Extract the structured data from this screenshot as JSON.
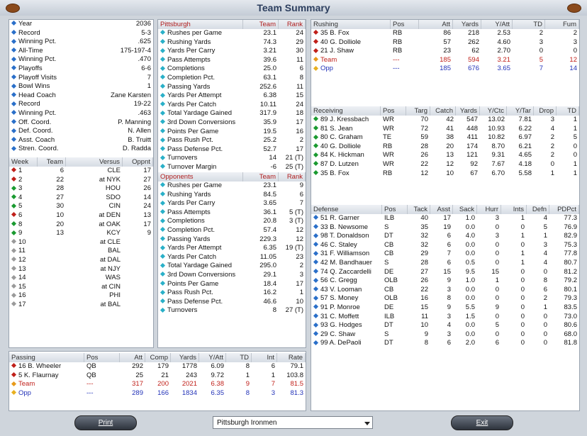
{
  "header": {
    "title": "Team Summary"
  },
  "team_info": {
    "rows": [
      [
        "Year",
        "2036"
      ],
      [
        "Record",
        "5-3"
      ],
      [
        "Winning Pct.",
        ".625"
      ],
      [
        "All-Time",
        "175-197-4"
      ],
      [
        "Winning Pct.",
        ".470"
      ],
      [
        "Playoffs",
        "6-6"
      ],
      [
        "Playoff Visits",
        "7"
      ],
      [
        "Bowl Wins",
        "1"
      ],
      [
        "Head Coach",
        "Zane Karsten"
      ],
      [
        "Record",
        "19-22"
      ],
      [
        "Winning Pct.",
        ".463"
      ],
      [
        "Off. Coord.",
        "P. Manning"
      ],
      [
        "Def. Coord.",
        "N. Allen"
      ],
      [
        "Asst. Coach",
        "B. Truitt"
      ],
      [
        "Stren. Coord.",
        "D. Radda"
      ]
    ]
  },
  "schedule": {
    "columns": [
      "Week",
      "Team",
      "Versus",
      "Oppnt"
    ],
    "rows": [
      [
        "1",
        "6",
        "CLE",
        "17"
      ],
      [
        "2",
        "22",
        "at NYK",
        "27"
      ],
      [
        "3",
        "28",
        "HOU",
        "26"
      ],
      [
        "4",
        "27",
        "SDO",
        "14"
      ],
      [
        "5",
        "30",
        "CIN",
        "24"
      ],
      [
        "6",
        "10",
        "at DEN",
        "13"
      ],
      [
        "8",
        "20",
        "at OAK",
        "17"
      ],
      [
        "9",
        "13",
        "KCY",
        "9"
      ],
      [
        "10",
        null,
        "at CLE",
        null
      ],
      [
        "11",
        null,
        "BAL",
        null
      ],
      [
        "12",
        null,
        "at DAL",
        null
      ],
      [
        "13",
        null,
        "at NJY",
        null
      ],
      [
        "14",
        null,
        "WAS",
        null
      ],
      [
        "15",
        null,
        "at CIN",
        null
      ],
      [
        "16",
        null,
        "PHI",
        null
      ],
      [
        "17",
        null,
        "at BAL",
        null
      ]
    ]
  },
  "team_stats": {
    "columns": [
      "Pittsburgh",
      "Team",
      "Rank"
    ],
    "rows": [
      [
        "Rushes per Game",
        "23.1",
        "24"
      ],
      [
        "Rushing Yards",
        "74.3",
        "29"
      ],
      [
        "Yards Per Carry",
        "3.21",
        "30"
      ],
      [
        "Pass Attempts",
        "39.6",
        "11"
      ],
      [
        "Completions",
        "25.0",
        "6"
      ],
      [
        "Completion Pct.",
        "63.1",
        "8"
      ],
      [
        "Passing Yards",
        "252.6",
        "11"
      ],
      [
        "Yards Per Attempt",
        "6.38",
        "15"
      ],
      [
        "Yards Per Catch",
        "10.11",
        "24"
      ],
      [
        "Total Yardage Gained",
        "317.9",
        "18"
      ],
      [
        "3rd Down Conversions",
        "35.9",
        "17"
      ],
      [
        "Points Per Game",
        "19.5",
        "16"
      ],
      [
        "Pass Rush Pct.",
        "25.2",
        "2"
      ],
      [
        "Pass Defense Pct.",
        "52.7",
        "17"
      ],
      [
        "Turnovers",
        "14",
        "21 (T)"
      ],
      [
        "Turnover Margin",
        "-6",
        "25 (T)"
      ]
    ]
  },
  "opponent_stats": {
    "columns": [
      "Opponents",
      "Team",
      "Rank"
    ],
    "rows": [
      [
        "Rushes per Game",
        "23.1",
        "9"
      ],
      [
        "Rushing Yards",
        "84.5",
        "6"
      ],
      [
        "Yards Per Carry",
        "3.65",
        "7"
      ],
      [
        "Pass Attempts",
        "36.1",
        "5 (T)"
      ],
      [
        "Completions",
        "20.8",
        "3 (T)"
      ],
      [
        "Completion Pct.",
        "57.4",
        "12"
      ],
      [
        "Passing Yards",
        "229.3",
        "12"
      ],
      [
        "Yards Per Attempt",
        "6.35",
        "19 (T)"
      ],
      [
        "Yards Per Catch",
        "11.05",
        "23"
      ],
      [
        "Total Yardage Gained",
        "295.0",
        "2"
      ],
      [
        "3rd Down Conversions",
        "29.1",
        "3"
      ],
      [
        "Points Per Game",
        "18.4",
        "17"
      ],
      [
        "Pass Rush Pct.",
        "16.2",
        "1"
      ],
      [
        "Pass Defense Pct.",
        "46.6",
        "10"
      ],
      [
        "Turnovers",
        "8",
        "27 (T)"
      ]
    ]
  },
  "rushing": {
    "columns": [
      "Rushing",
      "Pos",
      "Att",
      "Yards",
      "Y/Att",
      "TD",
      "Fum"
    ],
    "rows": [
      [
        "35 B. Fox",
        "RB",
        "86",
        "218",
        "2.53",
        "2",
        "2"
      ],
      [
        "40 G. Dolliole",
        "RB",
        "57",
        "262",
        "4.60",
        "3",
        "3"
      ],
      [
        "21 J. Shaw",
        "RB",
        "23",
        "62",
        "2.70",
        "0",
        "0"
      ]
    ],
    "team": [
      "Team",
      "---",
      "185",
      "594",
      "3.21",
      "5",
      "12"
    ],
    "opp": [
      "Opp",
      "---",
      "185",
      "676",
      "3.65",
      "7",
      "14"
    ]
  },
  "receiving": {
    "columns": [
      "Receiving",
      "Pos",
      "Targ",
      "Catch",
      "Yards",
      "Y/Ctc",
      "Y/Tar",
      "Drop",
      "TD"
    ],
    "rows": [
      [
        "89 J. Kressbach",
        "WR",
        "70",
        "42",
        "547",
        "13.02",
        "7.81",
        "3",
        "1"
      ],
      [
        "81 S. Jean",
        "WR",
        "72",
        "41",
        "448",
        "10.93",
        "6.22",
        "4",
        "1"
      ],
      [
        "80 C. Graham",
        "TE",
        "59",
        "38",
        "411",
        "10.82",
        "6.97",
        "2",
        "5"
      ],
      [
        "40 G. Dolliole",
        "RB",
        "28",
        "20",
        "174",
        "8.70",
        "6.21",
        "2",
        "0"
      ],
      [
        "84 K. Hickman",
        "WR",
        "26",
        "13",
        "121",
        "9.31",
        "4.65",
        "2",
        "0"
      ],
      [
        "87 D. Lutzen",
        "WR",
        "22",
        "12",
        "92",
        "7.67",
        "4.18",
        "0",
        "1"
      ],
      [
        "35 B. Fox",
        "RB",
        "12",
        "10",
        "67",
        "6.70",
        "5.58",
        "1",
        "1"
      ]
    ]
  },
  "defense": {
    "columns": [
      "Defense",
      "Pos",
      "Tack",
      "Asst",
      "Sack",
      "Hurr",
      "Ints",
      "Defn",
      "PDPct"
    ],
    "rows": [
      [
        "51 R. Garner",
        "ILB",
        "40",
        "17",
        "1.0",
        "3",
        "1",
        "4",
        "77.3"
      ],
      [
        "33 B. Newsome",
        "S",
        "35",
        "19",
        "0.0",
        "0",
        "0",
        "5",
        "76.9"
      ],
      [
        "98 T. Donaldson",
        "DT",
        "32",
        "6",
        "4.0",
        "3",
        "1",
        "1",
        "82.9"
      ],
      [
        "46 C. Staley",
        "CB",
        "32",
        "6",
        "0.0",
        "0",
        "0",
        "3",
        "75.3"
      ],
      [
        "31 F. Williamson",
        "CB",
        "29",
        "7",
        "0.0",
        "0",
        "1",
        "4",
        "77.8"
      ],
      [
        "42 M. Bandhauer",
        "S",
        "28",
        "6",
        "0.5",
        "0",
        "1",
        "4",
        "80.7"
      ],
      [
        "74 Q. Zaccardelli",
        "DE",
        "27",
        "15",
        "9.5",
        "15",
        "0",
        "0",
        "81.2"
      ],
      [
        "56 C. Gregg",
        "OLB",
        "26",
        "9",
        "1.0",
        "1",
        "0",
        "8",
        "79.2"
      ],
      [
        "43 V. Looman",
        "CB",
        "22",
        "3",
        "0.0",
        "0",
        "0",
        "6",
        "80.1"
      ],
      [
        "57 S. Money",
        "OLB",
        "16",
        "8",
        "0.0",
        "0",
        "0",
        "2",
        "79.3"
      ],
      [
        "91 P. Monroe",
        "DE",
        "15",
        "9",
        "5.5",
        "9",
        "0",
        "1",
        "83.5"
      ],
      [
        "31 C. Moffett",
        "ILB",
        "11",
        "3",
        "1.5",
        "0",
        "0",
        "0",
        "73.0"
      ],
      [
        "93 G. Hodges",
        "DT",
        "10",
        "4",
        "0.0",
        "5",
        "0",
        "0",
        "80.6"
      ],
      [
        "29 C. Shaw",
        "S",
        "9",
        "3",
        "0.0",
        "0",
        "0",
        "0",
        "68.0"
      ],
      [
        "99 A. DePaoli",
        "DT",
        "8",
        "6",
        "2.0",
        "6",
        "0",
        "0",
        "81.8"
      ]
    ]
  },
  "passing": {
    "columns": [
      "Passing",
      "Pos",
      "Att",
      "Comp",
      "Yards",
      "Y/Att",
      "TD",
      "Int",
      "Rate"
    ],
    "rows": [
      [
        "16 B. Wheeler",
        "QB",
        "292",
        "179",
        "1778",
        "6.09",
        "8",
        "6",
        "79.1"
      ],
      [
        "5 K. Flaurnay",
        "QB",
        "25",
        "21",
        "243",
        "9.72",
        "1",
        "1",
        "103.8"
      ]
    ],
    "team": [
      "Team",
      "---",
      "317",
      "200",
      "2021",
      "6.38",
      "9",
      "7",
      "81.5"
    ],
    "opp": [
      "Opp",
      "---",
      "289",
      "166",
      "1834",
      "6.35",
      "8",
      "3",
      "81.3"
    ]
  },
  "controls": {
    "print": "Print",
    "exit": "Exit",
    "team_select": "Pittsburgh Ironmen"
  }
}
